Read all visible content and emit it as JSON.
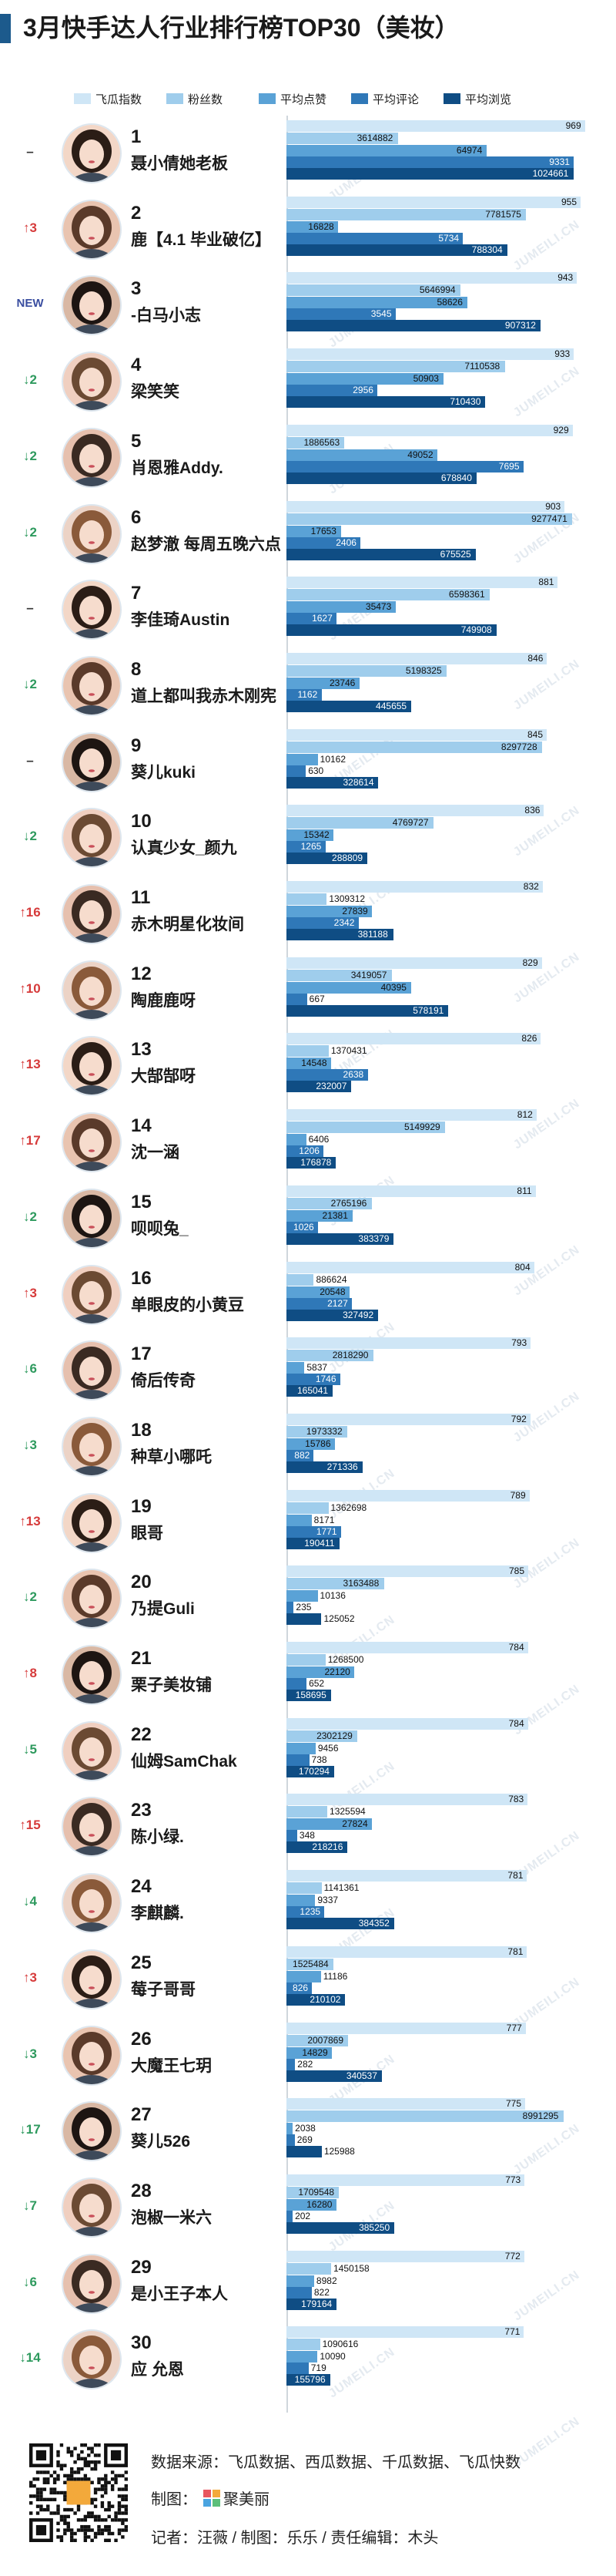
{
  "title": "3月快手达人行业排行榜TOP30（美妆）",
  "colors": {
    "accent": "#1c5a8c",
    "up": "#d63a3a",
    "down": "#2e9a5e",
    "same": "#333333",
    "new": "#3a4ea0"
  },
  "footer": {
    "source": "数据来源：飞瓜数据、西瓜数据、千瓜数据、飞瓜快数",
    "made_by_label": "制图：",
    "brand_name": "聚美丽",
    "credits": "记者：汪薇 / 制图：乐乐 / 责任编辑：木头"
  },
  "chart_data": {
    "type": "bar",
    "orientation": "horizontal",
    "title": "3月快手达人行业排行榜TOP30（美妆）",
    "legend_position": "top",
    "series": [
      {
        "name": "飞瓜指数",
        "color": "#cfe6f6",
        "scale_max": 1000
      },
      {
        "name": "粉丝数",
        "color": "#9fcdec",
        "scale_max": 10000000
      },
      {
        "name": "平均点赞",
        "color": "#5aa2d6",
        "scale_max": 100000
      },
      {
        "name": "平均评论",
        "color": "#2f78b8",
        "scale_max": 10000
      },
      {
        "name": "平均浏览",
        "color": "#0f4d84",
        "scale_max": 1100000
      }
    ],
    "rows": [
      {
        "rank": "1",
        "change": "–",
        "trend": "same",
        "name": "聂小倩她老板",
        "values": [
          969,
          3614882,
          64974,
          9331,
          1024661
        ]
      },
      {
        "rank": "2",
        "change": "↑3",
        "trend": "up",
        "name": "鹿【4.1 毕业破亿】",
        "values": [
          955,
          7781575,
          16828,
          5734,
          788304
        ]
      },
      {
        "rank": "3",
        "change": "NEW",
        "trend": "new",
        "name": "-白马小志",
        "values": [
          943,
          5646994,
          58626,
          3545,
          907312
        ]
      },
      {
        "rank": "4",
        "change": "↓2",
        "trend": "down",
        "name": "梁笑笑",
        "values": [
          933,
          7110538,
          50903,
          2956,
          710430
        ]
      },
      {
        "rank": "5",
        "change": "↓2",
        "trend": "down",
        "name": "肖恩雅Addy.",
        "values": [
          929,
          1886563,
          49052,
          7695,
          678840
        ]
      },
      {
        "rank": "6",
        "change": "↓2",
        "trend": "down",
        "name": "赵梦澈 每周五晚六点",
        "values": [
          903,
          9277471,
          17653,
          2406,
          675525
        ]
      },
      {
        "rank": "7",
        "change": "–",
        "trend": "same",
        "name": "李佳琦Austin",
        "values": [
          881,
          6598361,
          35473,
          1627,
          749908
        ]
      },
      {
        "rank": "8",
        "change": "↓2",
        "trend": "down",
        "name": "道上都叫我赤木刚宪",
        "values": [
          846,
          5198325,
          23746,
          1162,
          445655
        ]
      },
      {
        "rank": "9",
        "change": "–",
        "trend": "same",
        "name": "葵儿kuki",
        "values": [
          845,
          8297728,
          10162,
          630,
          328614
        ]
      },
      {
        "rank": "10",
        "change": "↓2",
        "trend": "down",
        "name": "认真少女_颜九",
        "values": [
          836,
          4769727,
          15342,
          1265,
          288809
        ]
      },
      {
        "rank": "11",
        "change": "↑16",
        "trend": "up",
        "name": "赤木明星化妆间",
        "values": [
          832,
          1309312,
          27839,
          2342,
          381188
        ]
      },
      {
        "rank": "12",
        "change": "↑10",
        "trend": "up",
        "name": "陶鹿鹿呀",
        "values": [
          829,
          3419057,
          40395,
          667,
          578191
        ]
      },
      {
        "rank": "13",
        "change": "↑13",
        "trend": "up",
        "name": "大郜郜呀",
        "values": [
          826,
          1370431,
          14548,
          2638,
          232007
        ]
      },
      {
        "rank": "14",
        "change": "↑17",
        "trend": "up",
        "name": "沈一涵",
        "values": [
          812,
          5149929,
          6406,
          1206,
          176878
        ]
      },
      {
        "rank": "15",
        "change": "↓2",
        "trend": "down",
        "name": "呗呗兔_",
        "values": [
          811,
          2765196,
          21381,
          1026,
          383379
        ]
      },
      {
        "rank": "16",
        "change": "↑3",
        "trend": "up",
        "name": "单眼皮的小黄豆",
        "values": [
          804,
          886624,
          20548,
          2127,
          327492
        ]
      },
      {
        "rank": "17",
        "change": "↓6",
        "trend": "down",
        "name": "倚后传奇",
        "values": [
          793,
          2818290,
          5837,
          1746,
          165041
        ]
      },
      {
        "rank": "18",
        "change": "↓3",
        "trend": "down",
        "name": "种草小哪吒",
        "values": [
          792,
          1973332,
          15786,
          882,
          271336
        ]
      },
      {
        "rank": "19",
        "change": "↑13",
        "trend": "up",
        "name": "眼哥",
        "values": [
          789,
          1362698,
          8171,
          1771,
          190411
        ]
      },
      {
        "rank": "20",
        "change": "↓2",
        "trend": "down",
        "name": "乃提Guli",
        "values": [
          785,
          3163488,
          10136,
          235,
          125052
        ]
      },
      {
        "rank": "21",
        "change": "↑8",
        "trend": "up",
        "name": "栗子美妆铺",
        "values": [
          784,
          1268500,
          22120,
          652,
          158695
        ]
      },
      {
        "rank": "22",
        "change": "↓5",
        "trend": "down",
        "name": "仙姆SamChak",
        "values": [
          784,
          2302129,
          9456,
          738,
          170294
        ]
      },
      {
        "rank": "23",
        "change": "↑15",
        "trend": "up",
        "name": "陈小绿.",
        "values": [
          783,
          1325594,
          27824,
          348,
          218216
        ]
      },
      {
        "rank": "24",
        "change": "↓4",
        "trend": "down",
        "name": "李麒麟.",
        "values": [
          781,
          1141361,
          9337,
          1235,
          384352
        ]
      },
      {
        "rank": "25",
        "change": "↑3",
        "trend": "up",
        "name": "莓子哥哥",
        "values": [
          781,
          1525484,
          11186,
          826,
          210102
        ]
      },
      {
        "rank": "26",
        "change": "↓3",
        "trend": "down",
        "name": "大魔王七玥",
        "values": [
          777,
          2007869,
          14829,
          282,
          340537
        ]
      },
      {
        "rank": "27",
        "change": "↓17",
        "trend": "down",
        "name": "葵儿526",
        "values": [
          775,
          8991295,
          2038,
          269,
          125988
        ]
      },
      {
        "rank": "28",
        "change": "↓7",
        "trend": "down",
        "name": "泡椒一米六",
        "values": [
          773,
          1709548,
          16280,
          202,
          385250
        ]
      },
      {
        "rank": "29",
        "change": "↓6",
        "trend": "down",
        "name": "是小王子本人",
        "values": [
          772,
          1450158,
          8982,
          822,
          179164
        ]
      },
      {
        "rank": "30",
        "change": "↓14",
        "trend": "down",
        "name": "应 允恩",
        "values": [
          771,
          1090616,
          10090,
          719,
          155796
        ]
      }
    ]
  }
}
